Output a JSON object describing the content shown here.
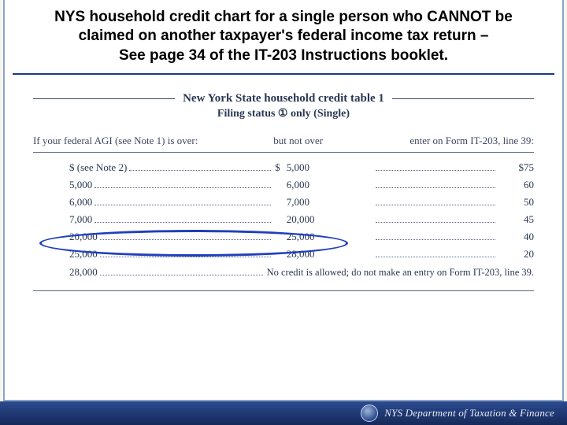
{
  "title": {
    "line1": "NYS household credit chart for a single person who CANNOT be",
    "line2": "claimed on another taxpayer's federal income tax return –",
    "line3": "See page 34 of the IT-203 Instructions booklet."
  },
  "table": {
    "title": "New York State household credit table 1",
    "subtitle": "Filing status ① only (Single)",
    "headers": {
      "col_a": "If your federal AGI (see Note 1) is over:",
      "col_b": "but not over",
      "col_c": "enter on Form IT-203, line 39:"
    },
    "rows": [
      {
        "a": "$ (see Note 2)",
        "b_dollar": "$",
        "b": "5,000",
        "c_dollar": "$",
        "c": "75"
      },
      {
        "a": "5,000",
        "b_dollar": "",
        "b": "6,000",
        "c_dollar": "",
        "c": "60"
      },
      {
        "a": "6,000",
        "b_dollar": "",
        "b": "7,000",
        "c_dollar": "",
        "c": "50"
      },
      {
        "a": "7,000",
        "b_dollar": "",
        "b": "20,000",
        "c_dollar": "",
        "c": "45"
      },
      {
        "a": "20,000",
        "b_dollar": "",
        "b": "25,000",
        "c_dollar": "",
        "c": "40"
      },
      {
        "a": "25,000",
        "b_dollar": "",
        "b": "28,000",
        "c_dollar": "",
        "c": "20"
      }
    ],
    "last_row": {
      "a": "28,000",
      "text": "No credit is allowed; do not make an entry on Form IT-203, line 39."
    }
  },
  "annotation": {
    "highlight_row_index": 3,
    "ellipse_color": "#1f3fbd",
    "ellipse_stroke_width": 3
  },
  "footer": {
    "agency": "NYS Department of Taxation & Finance"
  },
  "colors": {
    "frame_border": "#8ba4c9",
    "title_rule": "#1a3a7a",
    "table_text": "#3a4762",
    "footer_gradient_top": "#2b4a8f",
    "footer_gradient_bottom": "#16295a",
    "footer_text": "#e8edf7"
  }
}
